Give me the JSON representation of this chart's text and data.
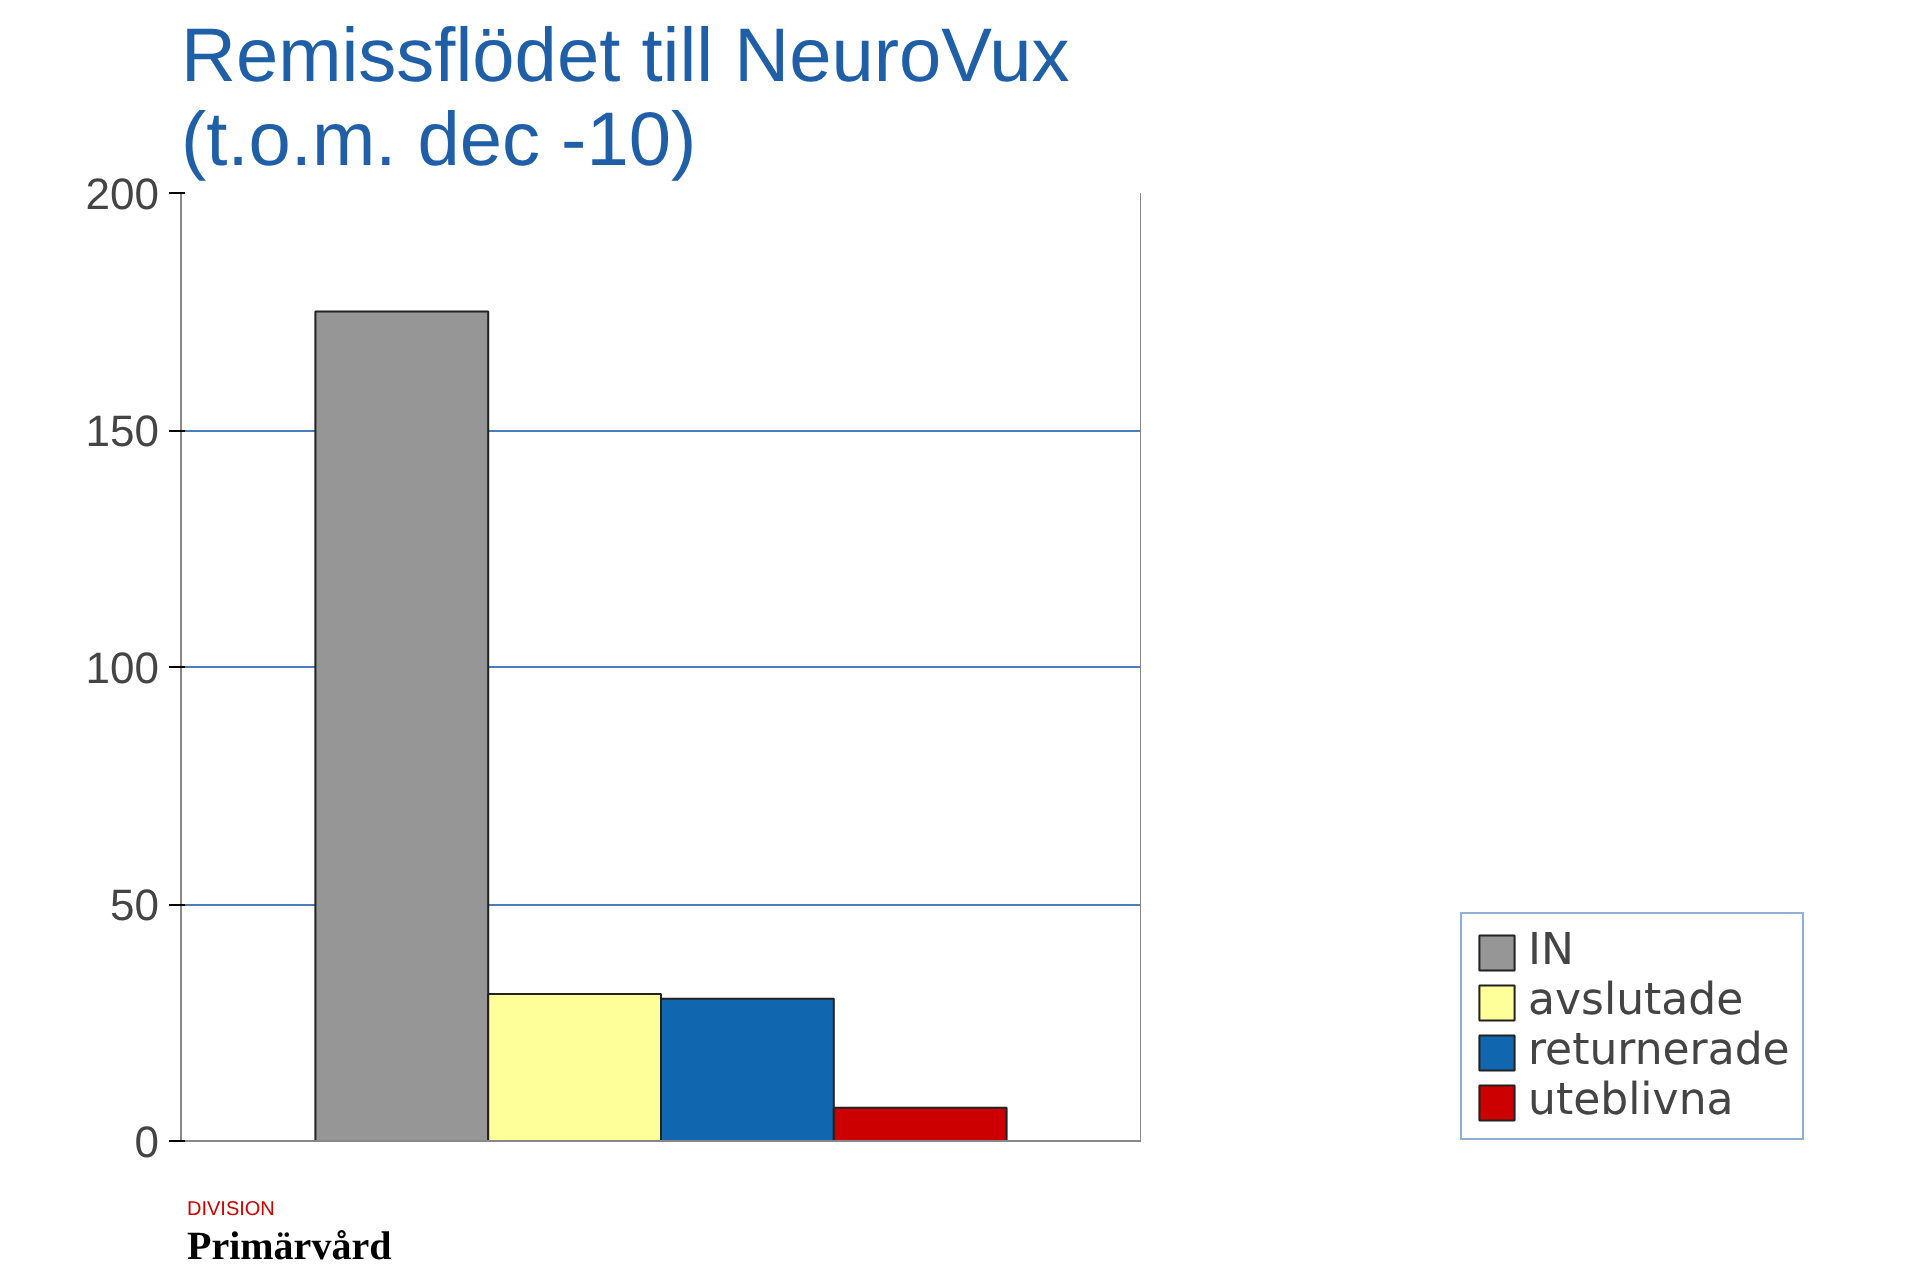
{
  "chart_data": {
    "type": "bar",
    "title": "Remissflödet till NeuroVux\n(t.o.m. dec -10)",
    "categories": [
      null
    ],
    "series": [
      {
        "name": "IN",
        "color": "#969696",
        "values": [
          175
        ]
      },
      {
        "name": "avslutade",
        "color": "#ffff99",
        "values": [
          31
        ]
      },
      {
        "name": "returnerade",
        "color": "#1166b0",
        "values": [
          30
        ]
      },
      {
        "name": "uteblivna",
        "color": "#cc0000",
        "values": [
          7
        ]
      }
    ],
    "ylim": [
      0,
      200
    ],
    "yticks": [
      0,
      50,
      100,
      150,
      200
    ],
    "grid": "y",
    "legend": "right",
    "annotations": [
      "DIVISION",
      "Primärvård"
    ]
  }
}
